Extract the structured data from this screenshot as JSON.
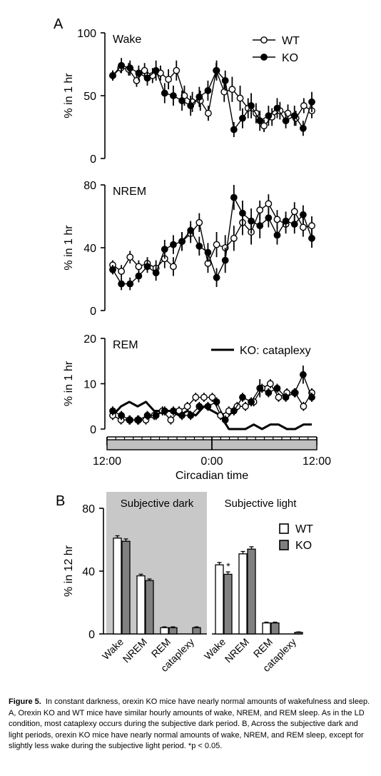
{
  "figure": {
    "panel_a_letter": "A",
    "panel_b_letter": "B",
    "caption_lead": "Figure 5.",
    "caption_text": "In constant darkness, orexin KO mice have nearly normal amounts of wakefulness and sleep. A, Orexin KO and WT mice have similar hourly amounts of wake, NREM, and REM sleep. As in the LD condition, most cataplexy occurs during the subjective dark period. B, Across the subjective dark and light periods, orexin KO mice have nearly normal amounts of wake, NREM, and REM sleep, except for slightly less wake during the subjective light period. *p < 0.05."
  },
  "chart_data": [
    {
      "type": "line",
      "panel": "A",
      "title": "Wake",
      "ylabel": "% in 1 hr",
      "ylim": [
        0,
        100
      ],
      "yticks": [
        "0",
        "50",
        "100"
      ],
      "legend": [
        "WT",
        "KO"
      ],
      "legend_position": "top-right",
      "series": [
        {
          "name": "WT",
          "marker": "open-circle",
          "values": [
            66,
            72,
            71,
            62,
            70,
            66,
            68,
            63,
            70,
            50,
            45,
            46,
            36,
            70,
            53,
            55,
            48,
            40,
            36,
            26,
            33,
            38,
            36,
            32,
            42,
            38
          ],
          "errors": [
            4,
            4,
            5,
            5,
            6,
            6,
            6,
            8,
            8,
            8,
            8,
            8,
            6,
            6,
            8,
            10,
            10,
            8,
            8,
            5,
            7,
            7,
            7,
            6,
            6,
            6
          ]
        },
        {
          "name": "KO",
          "marker": "filled-circle",
          "values": [
            66,
            74,
            72,
            68,
            64,
            70,
            52,
            50,
            46,
            42,
            49,
            54,
            70,
            62,
            23,
            32,
            42,
            30,
            34,
            40,
            30,
            34,
            24,
            45
          ],
          "errors": [
            4,
            6,
            6,
            6,
            6,
            8,
            8,
            8,
            8,
            8,
            8,
            8,
            8,
            8,
            6,
            8,
            10,
            8,
            8,
            8,
            6,
            8,
            6,
            8
          ]
        }
      ]
    },
    {
      "type": "line",
      "panel": "A",
      "title": "NREM",
      "ylabel": "% in 1 hr",
      "ylim": [
        0,
        80
      ],
      "yticks": [
        "0",
        "40",
        "80"
      ],
      "series": [
        {
          "name": "WT",
          "marker": "open-circle",
          "values": [
            29,
            25,
            34,
            28,
            30,
            27,
            33,
            28,
            44,
            49,
            56,
            30,
            42,
            40,
            46,
            56,
            50,
            64,
            68,
            58,
            55,
            63,
            53,
            54
          ],
          "errors": [
            3,
            4,
            4,
            4,
            4,
            5,
            6,
            6,
            6,
            6,
            6,
            6,
            8,
            8,
            8,
            8,
            8,
            6,
            6,
            6,
            6,
            6,
            6,
            6
          ]
        },
        {
          "name": "KO",
          "marker": "filled-circle",
          "values": [
            26,
            17,
            17,
            22,
            28,
            24,
            39,
            42,
            44,
            51,
            41,
            37,
            21,
            32,
            72,
            62,
            57,
            54,
            59,
            48,
            57,
            55,
            61,
            46
          ],
          "errors": [
            3,
            4,
            4,
            4,
            4,
            5,
            6,
            6,
            6,
            6,
            6,
            6,
            6,
            8,
            8,
            8,
            8,
            8,
            6,
            6,
            6,
            6,
            6,
            6
          ]
        }
      ]
    },
    {
      "type": "line",
      "panel": "A",
      "title": "REM",
      "ylabel": "% in 1 hr",
      "ylim": [
        0,
        20
      ],
      "yticks": [
        "0",
        "10",
        "20"
      ],
      "xlabel": "Circadian time",
      "xticks": [
        "12:00",
        "0:00",
        "12:00"
      ],
      "legend": [
        "KO: cataplexy"
      ],
      "legend_position": "top-right",
      "series": [
        {
          "name": "WT",
          "marker": "open-circle",
          "values": [
            3,
            2,
            2,
            2,
            2,
            3,
            4,
            2,
            4,
            5,
            7,
            7,
            7,
            3,
            4,
            5,
            5,
            6,
            9,
            10,
            7,
            8,
            8,
            5,
            8
          ],
          "errors": [
            1,
            1,
            1,
            1,
            1,
            1,
            1,
            1,
            1,
            1,
            1,
            1,
            1,
            1,
            1,
            1,
            1,
            1,
            1,
            1,
            1,
            1,
            1,
            1,
            1
          ]
        },
        {
          "name": "KO",
          "marker": "filled-circle",
          "values": [
            4,
            3,
            2,
            2,
            3,
            3,
            4,
            4,
            3,
            3,
            5,
            5,
            6,
            2,
            4,
            7,
            6,
            9,
            8,
            9,
            7,
            8,
            12,
            7
          ],
          "errors": [
            1,
            1,
            1,
            1,
            1,
            1,
            1,
            1,
            1,
            1,
            1,
            1,
            1,
            1,
            1,
            1,
            1,
            2,
            1,
            1,
            1,
            1,
            2,
            1
          ]
        },
        {
          "name": "KO: cataplexy",
          "marker": "none",
          "values": [
            3,
            5,
            6,
            5,
            6,
            4,
            4,
            4,
            3,
            4,
            3,
            5,
            4,
            3,
            0,
            0,
            0,
            1,
            0,
            1,
            1,
            0,
            0,
            1,
            1
          ],
          "errors": []
        }
      ]
    },
    {
      "type": "bar",
      "panel": "B",
      "ylabel": "% in 12 hr",
      "ylim": [
        0,
        80
      ],
      "yticks": [
        "0",
        "40",
        "80"
      ],
      "groups": [
        "Subjective dark",
        "Subjective light"
      ],
      "categories": [
        "Wake",
        "NREM",
        "REM",
        "cataplexy"
      ],
      "legend": [
        "WT",
        "KO"
      ],
      "legend_position": "top-right",
      "significance_mark": "*",
      "series": [
        {
          "name": "WT",
          "color": "#ffffff",
          "dark": [
            61,
            37,
            4,
            0
          ],
          "light": [
            44,
            51,
            7,
            0
          ],
          "dark_err": [
            1.5,
            1,
            0.5,
            0
          ],
          "light_err": [
            1.5,
            1.5,
            0.5,
            0
          ]
        },
        {
          "name": "KO",
          "color": "#808080",
          "dark": [
            59,
            34,
            4,
            4
          ],
          "light": [
            38,
            54,
            7,
            1
          ],
          "dark_err": [
            1.5,
            1,
            0.5,
            0.5
          ],
          "light_err": [
            1.5,
            1.5,
            0.5,
            0.3
          ]
        }
      ]
    }
  ]
}
